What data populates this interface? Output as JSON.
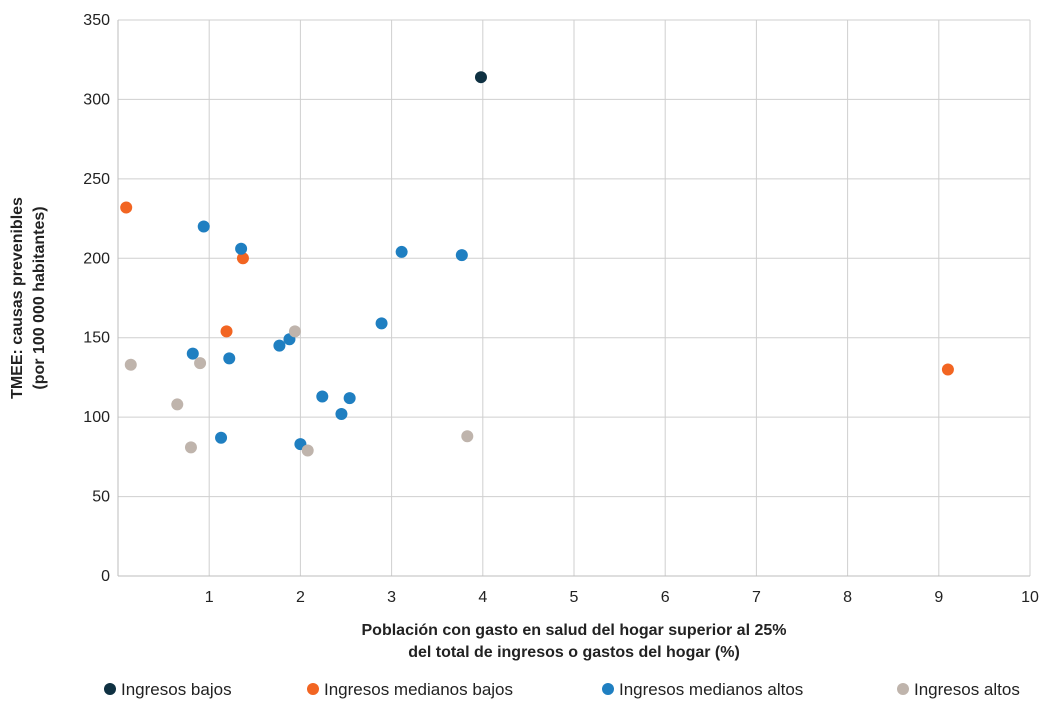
{
  "chart_data": {
    "type": "scatter",
    "title": "",
    "xlabel": [
      "Población con gasto en salud del hogar superior al 25%",
      "del total de ingresos o gastos del hogar (%)"
    ],
    "ylabel": [
      "TMEE: causas prevenibles",
      "(por 100 000 habitantes)"
    ],
    "xlim": [
      0,
      10
    ],
    "ylim": [
      0,
      350
    ],
    "x_ticks": [
      1,
      2,
      3,
      4,
      5,
      6,
      7,
      8,
      9,
      10
    ],
    "y_ticks": [
      0,
      50,
      100,
      150,
      200,
      250,
      300,
      350
    ],
    "grid": true,
    "legend_position": "bottom",
    "series": [
      {
        "name": "Ingresos bajos",
        "color": "#0f3142",
        "points": [
          [
            3.98,
            314
          ]
        ]
      },
      {
        "name": "Ingresos medianos bajos",
        "color": "#f26522",
        "points": [
          [
            0.09,
            232
          ],
          [
            1.37,
            200
          ],
          [
            1.19,
            154
          ],
          [
            9.1,
            130
          ]
        ]
      },
      {
        "name": "Ingresos medianos altos",
        "color": "#1f7fc1",
        "points": [
          [
            0.94,
            220
          ],
          [
            1.35,
            206
          ],
          [
            3.11,
            204
          ],
          [
            3.77,
            202
          ],
          [
            2.89,
            159
          ],
          [
            1.88,
            149
          ],
          [
            1.77,
            145
          ],
          [
            0.82,
            140
          ],
          [
            1.22,
            137
          ],
          [
            2.24,
            113
          ],
          [
            2.54,
            112
          ],
          [
            2.45,
            102
          ],
          [
            1.13,
            87
          ],
          [
            2.0,
            83
          ]
        ]
      },
      {
        "name": "Ingresos altos",
        "color": "#bfb4ac",
        "points": [
          [
            0.14,
            133
          ],
          [
            0.9,
            134
          ],
          [
            1.94,
            154
          ],
          [
            0.65,
            108
          ],
          [
            3.83,
            88
          ],
          [
            0.8,
            81
          ],
          [
            2.08,
            79
          ]
        ]
      }
    ]
  }
}
